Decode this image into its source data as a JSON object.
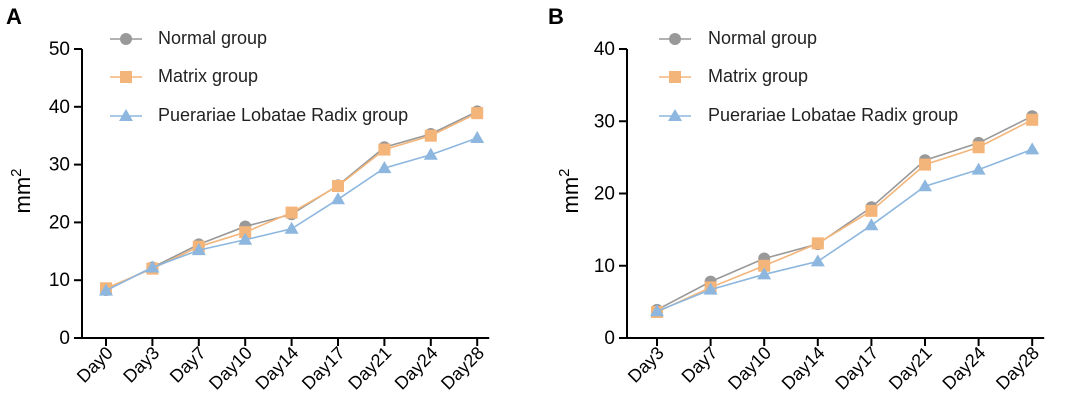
{
  "chart_data": [
    {
      "panel": "A",
      "type": "line",
      "title": "",
      "xlabel": "",
      "ylabel": "mm",
      "ylabel_sup": "2",
      "ylim": [
        0,
        50
      ],
      "yticks": [
        0,
        10,
        20,
        30,
        40,
        50
      ],
      "categories": [
        "Day0",
        "Day3",
        "Day7",
        "Day10",
        "Day14",
        "Day17",
        "Day21",
        "Day24",
        "Day28"
      ],
      "series": [
        {
          "name": "Normal group",
          "color": "#999999",
          "marker": "circle",
          "values": [
            8.3,
            12.2,
            16.2,
            19.3,
            21.4,
            26.4,
            33.0,
            35.3,
            39.2
          ]
        },
        {
          "name": "Matrix group",
          "color": "#F4B57A",
          "marker": "square",
          "values": [
            8.6,
            12.0,
            15.8,
            18.3,
            21.7,
            26.3,
            32.6,
            35.0,
            38.9
          ]
        },
        {
          "name": "Puerariae Lobatae Radix group",
          "color": "#8DB7DF",
          "marker": "triangle",
          "values": [
            8.2,
            12.2,
            15.2,
            17.0,
            18.9,
            24.0,
            29.4,
            31.7,
            34.6
          ]
        }
      ],
      "legend": "top-left"
    },
    {
      "panel": "B",
      "type": "line",
      "title": "",
      "xlabel": "",
      "ylabel": "mm",
      "ylabel_sup": "2",
      "ylim": [
        0,
        40
      ],
      "yticks": [
        0,
        10,
        20,
        30,
        40
      ],
      "categories": [
        "Day3",
        "Day7",
        "Day10",
        "Day14",
        "Day17",
        "Day21",
        "Day24",
        "Day28"
      ],
      "series": [
        {
          "name": "Normal group",
          "color": "#999999",
          "marker": "circle",
          "values": [
            3.9,
            7.8,
            11.0,
            13.0,
            18.1,
            24.6,
            27.0,
            30.7
          ]
        },
        {
          "name": "Matrix group",
          "color": "#F4B57A",
          "marker": "square",
          "values": [
            3.6,
            7.0,
            10.0,
            13.1,
            17.6,
            24.0,
            26.4,
            30.2
          ]
        },
        {
          "name": "Puerariae Lobatae Radix group",
          "color": "#8DB7DF",
          "marker": "triangle",
          "values": [
            3.7,
            6.7,
            8.8,
            10.6,
            15.6,
            21.0,
            23.3,
            26.1
          ]
        }
      ],
      "legend": "top-left"
    }
  ]
}
